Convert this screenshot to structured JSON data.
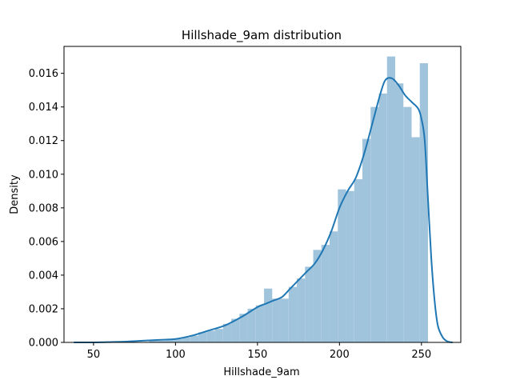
{
  "chart_data": {
    "type": "bar",
    "title": "Hillshade_9am distribution",
    "xlabel": "Hillshade_9am",
    "ylabel": "Density",
    "xlim": [
      32,
      274
    ],
    "ylim": [
      0,
      0.0176
    ],
    "x_ticks": [
      50,
      100,
      150,
      200,
      250
    ],
    "x_tick_labels": [
      "50",
      "100",
      "150",
      "200",
      "250"
    ],
    "y_ticks": [
      0,
      0.002,
      0.004,
      0.006,
      0.008,
      0.01,
      0.012,
      0.014,
      0.016
    ],
    "y_tick_labels": [
      "0.000",
      "0.002",
      "0.004",
      "0.006",
      "0.008",
      "0.010",
      "0.012",
      "0.014",
      "0.016"
    ],
    "grid": false,
    "histogram": {
      "bin_width": 5.0,
      "bin_starts": [
        84,
        89,
        94,
        99,
        104,
        109,
        114,
        119,
        124,
        129,
        134,
        139,
        144,
        149,
        154,
        159,
        164,
        169,
        174,
        179,
        184,
        189,
        194,
        199,
        204,
        209,
        214,
        219,
        224,
        229,
        234,
        239,
        244,
        249
      ],
      "density": [
        0.0001,
        0.0001,
        0.0002,
        0.0002,
        0.0003,
        0.0004,
        0.0006,
        0.0007,
        0.0008,
        0.0011,
        0.0014,
        0.0017,
        0.002,
        0.0022,
        0.0032,
        0.0026,
        0.0026,
        0.0033,
        0.0038,
        0.0045,
        0.0055,
        0.0058,
        0.0066,
        0.0091,
        0.009,
        0.0097,
        0.0121,
        0.014,
        0.0148,
        0.017,
        0.0154,
        0.014,
        0.0122,
        0.0134
      ],
      "last_bin": {
        "start": 249,
        "end": 254,
        "density": 0.0166
      }
    },
    "kde": {
      "x": [
        38,
        50,
        60,
        70,
        80,
        90,
        100,
        110,
        120,
        130,
        140,
        150,
        155,
        160,
        165,
        170,
        175,
        180,
        185,
        190,
        195,
        200,
        205,
        210,
        215,
        220,
        225,
        228,
        232,
        236,
        240,
        244,
        248,
        250,
        252,
        254,
        256,
        258,
        260,
        263,
        266,
        269
      ],
      "y": [
        0.0,
        0.0,
        2e-05,
        5e-05,
        0.0001,
        0.00015,
        0.0002,
        0.0004,
        0.0007,
        0.001,
        0.0015,
        0.0021,
        0.0023,
        0.0025,
        0.0027,
        0.0032,
        0.0037,
        0.0042,
        0.0047,
        0.0055,
        0.0066,
        0.008,
        0.009,
        0.0098,
        0.0112,
        0.013,
        0.0148,
        0.0156,
        0.0157,
        0.0153,
        0.0147,
        0.0143,
        0.0139,
        0.0133,
        0.012,
        0.0085,
        0.005,
        0.0025,
        0.001,
        0.0003,
        5e-05,
        0.0
      ]
    },
    "colors": {
      "bars": "#a1c4dd",
      "kde_line": "#1f77b4",
      "axes": "#000000"
    }
  }
}
